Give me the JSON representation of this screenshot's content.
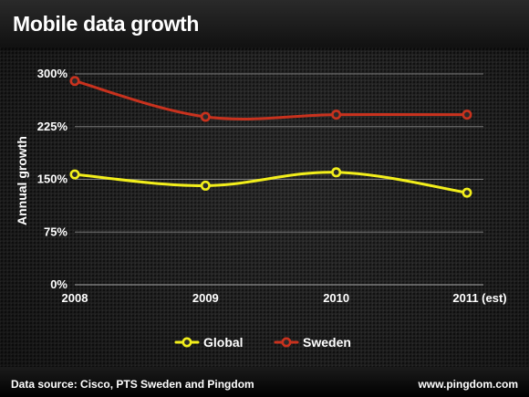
{
  "title": "Mobile data growth",
  "footer": {
    "source": "Data source: Cisco, PTS Sweden and Pingdom",
    "site": "www.pingdom.com"
  },
  "colors": {
    "global": "#f2ee1b",
    "sweden": "#c8321e",
    "grid": "#8a8a8a"
  },
  "chart_data": {
    "type": "line",
    "title": "Mobile data growth",
    "xlabel": "",
    "ylabel": "Annual growth",
    "categories": [
      "2008",
      "2009",
      "2010",
      "2011 (est)"
    ],
    "ylim": [
      0,
      300
    ],
    "yticks": [
      0,
      75,
      150,
      225,
      300
    ],
    "ytick_labels": [
      "0%",
      "75%",
      "150%",
      "225%",
      "300%"
    ],
    "grid": "horizontal",
    "legend_position": "bottom",
    "series": [
      {
        "name": "Global",
        "values": [
          157,
          141,
          160,
          131
        ]
      },
      {
        "name": "Sweden",
        "values": [
          290,
          239,
          242,
          242
        ]
      }
    ]
  }
}
